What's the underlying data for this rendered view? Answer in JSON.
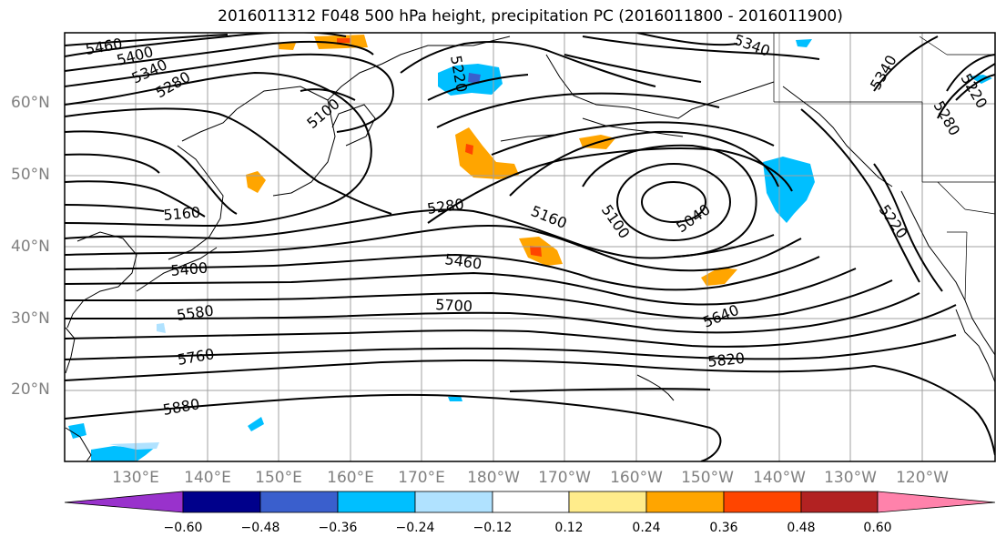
{
  "title": "2016011312 F048 500 hPa height, precipitation PC (2016011800 - 2016011900)",
  "lat_labels": [
    "60°N",
    "50°N",
    "40°N",
    "30°N",
    "20°N"
  ],
  "lon_labels": [
    "130°E",
    "140°E",
    "150°E",
    "160°E",
    "170°E",
    "180°W",
    "170°W",
    "160°W",
    "150°W",
    "140°W",
    "130°W",
    "120°W"
  ],
  "contour_labels": [
    "5460",
    "5400",
    "5340",
    "5280",
    "5100",
    "5220",
    "5340",
    "5340",
    "5220",
    "5280",
    "5160",
    "5280",
    "5160",
    "5100",
    "5040",
    "5220",
    "5400",
    "5460",
    "5580",
    "5700",
    "5640",
    "5760",
    "5820",
    "5880"
  ],
  "colorbar": {
    "ticks": [
      "−0.60",
      "−0.48",
      "−0.36",
      "−0.24",
      "−0.12",
      "0.12",
      "0.24",
      "0.36",
      "0.48",
      "0.60"
    ],
    "colors": [
      "#9932cc",
      "#00008b",
      "#3a5fcd",
      "#00bfff",
      "#b0e2ff",
      "#ffffff",
      "#ffec8b",
      "#ffa500",
      "#ff4500",
      "#b22222",
      "#ff82ab"
    ]
  }
}
